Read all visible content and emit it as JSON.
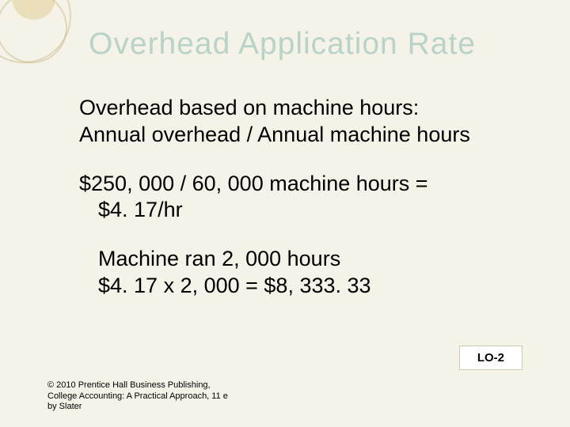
{
  "title": {
    "text": "Overhead Application Rate",
    "color": "#b9d3c9",
    "fontsize": 39
  },
  "body": {
    "line1": "Overhead based on machine hours:",
    "line2": "Annual overhead / Annual machine hours",
    "calc_line": "$250, 000 / 60, 000 machine hours = $4. 17/hr",
    "example_line1": "Machine ran 2, 000 hours",
    "example_line2": "$4. 17 x 2, 000 = $8, 333. 33",
    "fontsize": 27,
    "text_color": "#000000"
  },
  "lo_label": "LO-2",
  "copyright": "© 2010 Prentice Hall Business Publishing, College Accounting: A Practical Approach, 11 e by Slater",
  "background_color": "#f5f2e8"
}
